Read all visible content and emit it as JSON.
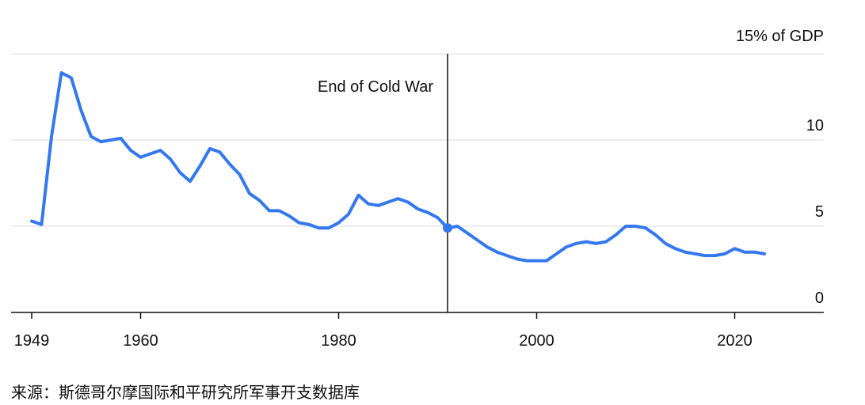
{
  "chart_data": {
    "type": "line",
    "title": "",
    "xlabel": "",
    "ylabel": "",
    "xlim": [
      1949,
      2029
    ],
    "ylim": [
      0,
      15
    ],
    "x_ticks": [
      {
        "value": 1949,
        "label": "1949"
      },
      {
        "value": 1960,
        "label": "1960"
      },
      {
        "value": 1980,
        "label": "1980"
      },
      {
        "value": 2000,
        "label": "2000"
      },
      {
        "value": 2020,
        "label": "2020"
      }
    ],
    "y_ticks": [
      {
        "value": 0,
        "label": "0"
      },
      {
        "value": 5,
        "label": "5"
      },
      {
        "value": 10,
        "label": "10"
      },
      {
        "value": 15,
        "label": "15% of GDP"
      }
    ],
    "grid": {
      "horizontal": true,
      "vertical": false
    },
    "line_color": "#3478f0",
    "annotation": {
      "x": 1991,
      "y": 4.9,
      "label": "End of Cold War"
    },
    "series": [
      {
        "values": [
          {
            "x": 1949,
            "y": 5.3
          },
          {
            "x": 1950,
            "y": 5.1
          },
          {
            "x": 1951,
            "y": 10.2
          },
          {
            "x": 1952,
            "y": 13.9
          },
          {
            "x": 1953,
            "y": 13.6
          },
          {
            "x": 1954,
            "y": 11.7
          },
          {
            "x": 1955,
            "y": 10.2
          },
          {
            "x": 1956,
            "y": 9.9
          },
          {
            "x": 1957,
            "y": 10.0
          },
          {
            "x": 1958,
            "y": 10.1
          },
          {
            "x": 1959,
            "y": 9.4
          },
          {
            "x": 1960,
            "y": 9.0
          },
          {
            "x": 1961,
            "y": 9.2
          },
          {
            "x": 1962,
            "y": 9.4
          },
          {
            "x": 1963,
            "y": 8.9
          },
          {
            "x": 1964,
            "y": 8.1
          },
          {
            "x": 1965,
            "y": 7.6
          },
          {
            "x": 1966,
            "y": 8.5
          },
          {
            "x": 1967,
            "y": 9.5
          },
          {
            "x": 1968,
            "y": 9.3
          },
          {
            "x": 1969,
            "y": 8.6
          },
          {
            "x": 1970,
            "y": 8.0
          },
          {
            "x": 1971,
            "y": 6.9
          },
          {
            "x": 1972,
            "y": 6.5
          },
          {
            "x": 1973,
            "y": 5.9
          },
          {
            "x": 1974,
            "y": 5.9
          },
          {
            "x": 1975,
            "y": 5.6
          },
          {
            "x": 1976,
            "y": 5.2
          },
          {
            "x": 1977,
            "y": 5.1
          },
          {
            "x": 1978,
            "y": 4.9
          },
          {
            "x": 1979,
            "y": 4.9
          },
          {
            "x": 1980,
            "y": 5.2
          },
          {
            "x": 1981,
            "y": 5.7
          },
          {
            "x": 1982,
            "y": 6.8
          },
          {
            "x": 1983,
            "y": 6.3
          },
          {
            "x": 1984,
            "y": 6.2
          },
          {
            "x": 1985,
            "y": 6.4
          },
          {
            "x": 1986,
            "y": 6.6
          },
          {
            "x": 1987,
            "y": 6.4
          },
          {
            "x": 1988,
            "y": 6.0
          },
          {
            "x": 1989,
            "y": 5.8
          },
          {
            "x": 1990,
            "y": 5.5
          },
          {
            "x": 1991,
            "y": 4.9
          },
          {
            "x": 1992,
            "y": 5.0
          },
          {
            "x": 1993,
            "y": 4.6
          },
          {
            "x": 1994,
            "y": 4.2
          },
          {
            "x": 1995,
            "y": 3.8
          },
          {
            "x": 1996,
            "y": 3.5
          },
          {
            "x": 1997,
            "y": 3.3
          },
          {
            "x": 1998,
            "y": 3.1
          },
          {
            "x": 1999,
            "y": 3.0
          },
          {
            "x": 2000,
            "y": 3.0
          },
          {
            "x": 2001,
            "y": 3.0
          },
          {
            "x": 2002,
            "y": 3.4
          },
          {
            "x": 2003,
            "y": 3.8
          },
          {
            "x": 2004,
            "y": 4.0
          },
          {
            "x": 2005,
            "y": 4.1
          },
          {
            "x": 2006,
            "y": 4.0
          },
          {
            "x": 2007,
            "y": 4.1
          },
          {
            "x": 2008,
            "y": 4.5
          },
          {
            "x": 2009,
            "y": 5.0
          },
          {
            "x": 2010,
            "y": 5.0
          },
          {
            "x": 2011,
            "y": 4.9
          },
          {
            "x": 2012,
            "y": 4.5
          },
          {
            "x": 2013,
            "y": 4.0
          },
          {
            "x": 2014,
            "y": 3.7
          },
          {
            "x": 2015,
            "y": 3.5
          },
          {
            "x": 2016,
            "y": 3.4
          },
          {
            "x": 2017,
            "y": 3.3
          },
          {
            "x": 2018,
            "y": 3.3
          },
          {
            "x": 2019,
            "y": 3.4
          },
          {
            "x": 2020,
            "y": 3.7
          },
          {
            "x": 2021,
            "y": 3.5
          },
          {
            "x": 2022,
            "y": 3.5
          },
          {
            "x": 2023,
            "y": 3.4
          }
        ]
      }
    ]
  },
  "source": "来源：斯德哥尔摩国际和平研究所军事开支数据库"
}
